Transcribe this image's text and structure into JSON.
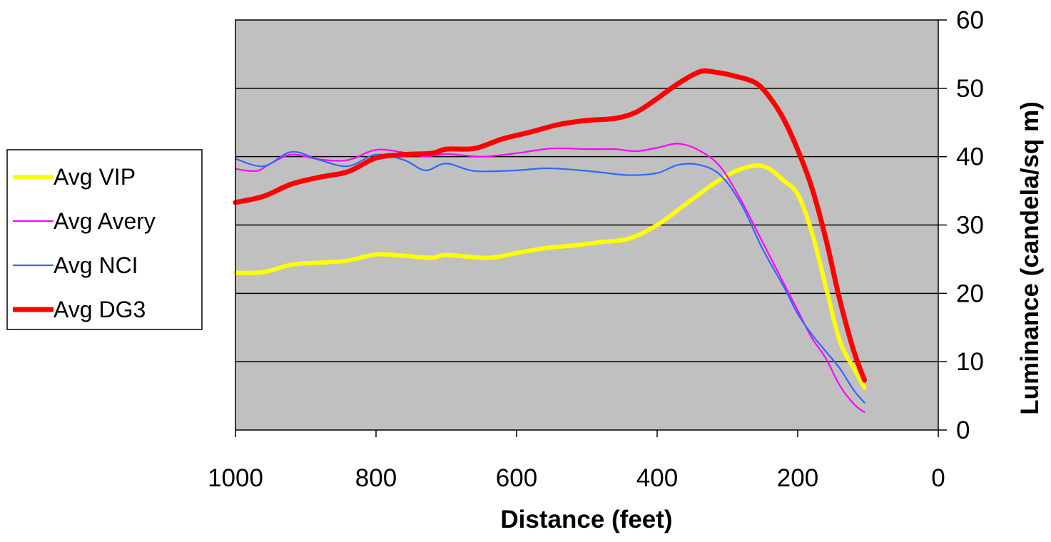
{
  "chart_data": {
    "type": "line",
    "xlabel": "Distance (feet)",
    "ylabel": "Luminance (candela/sq m)",
    "xlim": [
      1000,
      0
    ],
    "ylim": [
      0,
      60
    ],
    "x_ticks": [
      1000,
      800,
      600,
      400,
      200,
      0
    ],
    "y_ticks": [
      0,
      10,
      20,
      30,
      40,
      50,
      60
    ],
    "x_tick_labels": [
      "1000",
      "800",
      "600",
      "400",
      "200",
      "0"
    ],
    "y_tick_labels": [
      "0",
      "10",
      "20",
      "30",
      "40",
      "50",
      "60"
    ],
    "plot_background": "#c0c0c0",
    "grid": "horizontal major lines",
    "legend_position": "left",
    "series": [
      {
        "name": "Avg VIP",
        "color": "#ffff00",
        "weight": "thick",
        "points": [
          [
            1000,
            23.0
          ],
          [
            960,
            23.1
          ],
          [
            920,
            24.2
          ],
          [
            880,
            24.5
          ],
          [
            840,
            24.8
          ],
          [
            800,
            25.7
          ],
          [
            760,
            25.5
          ],
          [
            720,
            25.2
          ],
          [
            700,
            25.6
          ],
          [
            640,
            25.2
          ],
          [
            600,
            25.9
          ],
          [
            560,
            26.6
          ],
          [
            520,
            27.0
          ],
          [
            480,
            27.5
          ],
          [
            440,
            28.0
          ],
          [
            400,
            30.0
          ],
          [
            360,
            33.0
          ],
          [
            320,
            36.0
          ],
          [
            290,
            37.8
          ],
          [
            260,
            38.7
          ],
          [
            240,
            38.2
          ],
          [
            220,
            36.5
          ],
          [
            200,
            34.5
          ],
          [
            180,
            29.0
          ],
          [
            160,
            21.0
          ],
          [
            140,
            13.0
          ],
          [
            120,
            9.0
          ],
          [
            105,
            6.2
          ]
        ]
      },
      {
        "name": "Avg Avery",
        "color": "#ff00ff",
        "weight": "thin",
        "points": [
          [
            1000,
            38.2
          ],
          [
            970,
            37.9
          ],
          [
            950,
            39.0
          ],
          [
            920,
            40.3
          ],
          [
            880,
            39.6
          ],
          [
            840,
            39.5
          ],
          [
            800,
            41.0
          ],
          [
            760,
            40.6
          ],
          [
            730,
            40.0
          ],
          [
            700,
            40.4
          ],
          [
            650,
            40.0
          ],
          [
            600,
            40.5
          ],
          [
            550,
            41.2
          ],
          [
            500,
            41.1
          ],
          [
            460,
            41.1
          ],
          [
            430,
            40.8
          ],
          [
            400,
            41.3
          ],
          [
            370,
            41.9
          ],
          [
            340,
            40.9
          ],
          [
            310,
            38.5
          ],
          [
            280,
            33.5
          ],
          [
            250,
            27.5
          ],
          [
            220,
            21.5
          ],
          [
            200,
            17.5
          ],
          [
            180,
            13.5
          ],
          [
            160,
            10.5
          ],
          [
            140,
            6.5
          ],
          [
            120,
            3.8
          ],
          [
            105,
            2.6
          ]
        ]
      },
      {
        "name": "Avg NCI",
        "color": "#3366ff",
        "weight": "thin",
        "points": [
          [
            1000,
            39.7
          ],
          [
            960,
            38.6
          ],
          [
            920,
            40.7
          ],
          [
            880,
            39.5
          ],
          [
            840,
            38.6
          ],
          [
            800,
            40.3
          ],
          [
            760,
            39.5
          ],
          [
            730,
            38.0
          ],
          [
            700,
            39.0
          ],
          [
            660,
            37.9
          ],
          [
            600,
            38.0
          ],
          [
            560,
            38.3
          ],
          [
            520,
            38.1
          ],
          [
            480,
            37.7
          ],
          [
            440,
            37.3
          ],
          [
            400,
            37.6
          ],
          [
            370,
            38.8
          ],
          [
            340,
            38.8
          ],
          [
            310,
            37.3
          ],
          [
            280,
            33.0
          ],
          [
            250,
            26.5
          ],
          [
            220,
            21.0
          ],
          [
            200,
            17.0
          ],
          [
            180,
            14.0
          ],
          [
            160,
            11.5
          ],
          [
            140,
            9.0
          ],
          [
            120,
            5.8
          ],
          [
            105,
            4.0
          ]
        ]
      },
      {
        "name": "Avg DG3",
        "color": "#ff0000",
        "weight": "thickest",
        "points": [
          [
            1000,
            33.3
          ],
          [
            960,
            34.2
          ],
          [
            920,
            36.0
          ],
          [
            880,
            37.0
          ],
          [
            840,
            37.8
          ],
          [
            800,
            39.8
          ],
          [
            760,
            40.3
          ],
          [
            720,
            40.5
          ],
          [
            700,
            41.1
          ],
          [
            660,
            41.2
          ],
          [
            620,
            42.6
          ],
          [
            580,
            43.6
          ],
          [
            540,
            44.7
          ],
          [
            500,
            45.3
          ],
          [
            460,
            45.6
          ],
          [
            430,
            46.5
          ],
          [
            400,
            48.5
          ],
          [
            370,
            50.7
          ],
          [
            340,
            52.4
          ],
          [
            320,
            52.4
          ],
          [
            290,
            51.8
          ],
          [
            260,
            50.8
          ],
          [
            240,
            48.7
          ],
          [
            220,
            45.5
          ],
          [
            200,
            41.0
          ],
          [
            180,
            35.5
          ],
          [
            160,
            28.0
          ],
          [
            140,
            19.0
          ],
          [
            120,
            11.5
          ],
          [
            105,
            7.3
          ]
        ]
      }
    ]
  }
}
